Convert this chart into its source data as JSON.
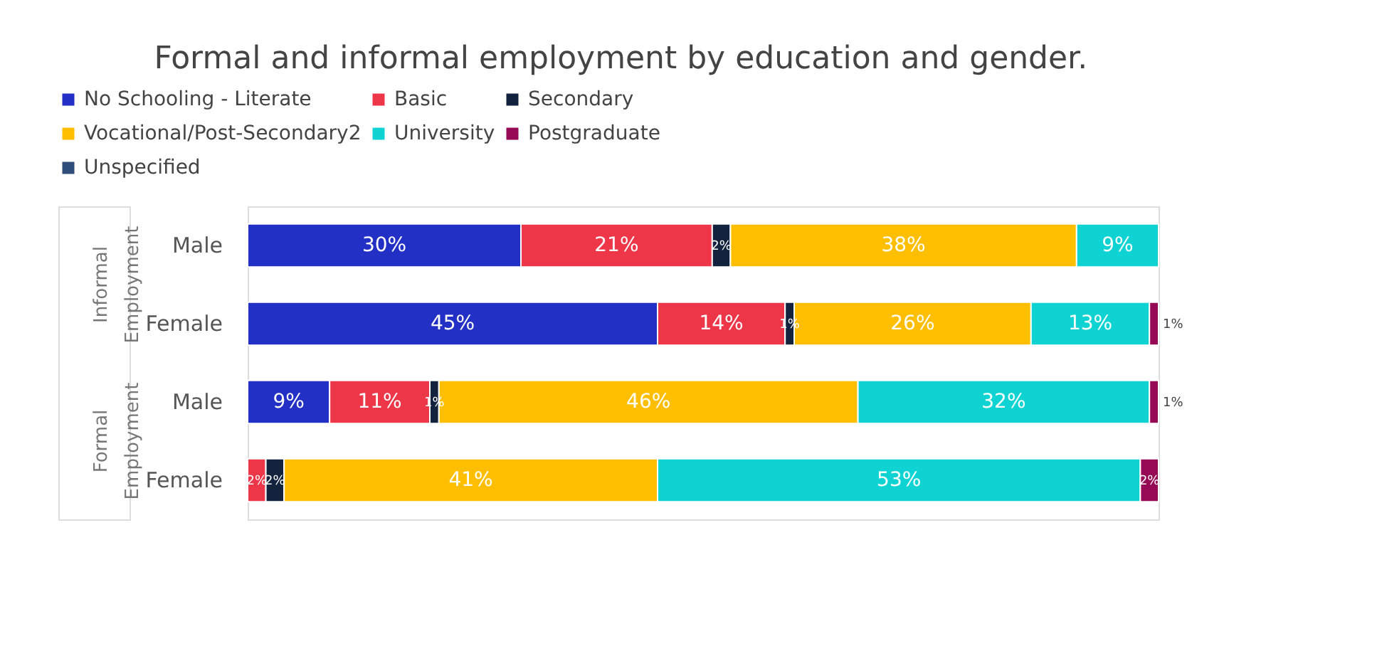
{
  "chart_data": {
    "type": "bar",
    "orientation": "horizontal",
    "stacked": true,
    "legend": "top",
    "grid": false,
    "tick_labels": "y",
    "title": "Formal and informal employment by education and gender.",
    "categories": [
      "Male",
      "Female",
      "Male",
      "Female"
    ],
    "annotations": [
      "Informal Employment",
      "Formal Employment"
    ],
    "series": [
      {
        "name": "No Schooling - Literate",
        "color": "#2330c6",
        "values": [
          30,
          45,
          9,
          null
        ],
        "value_labels": [
          "30%",
          "45%",
          "9%",
          null
        ]
      },
      {
        "name": "Basic",
        "color": "#ee3649",
        "values": [
          21,
          14,
          11,
          2
        ],
        "value_labels": [
          "21%",
          "14%",
          "11%",
          "2%"
        ]
      },
      {
        "name": "Secondary",
        "color": "#13223d",
        "values": [
          2,
          1,
          1,
          2
        ],
        "value_labels": [
          "2%",
          "1%",
          "1%",
          "2%"
        ]
      },
      {
        "name": "Vocational/Post-Secondary2",
        "color": "#ffbf00",
        "values": [
          38,
          26,
          46,
          41
        ],
        "value_labels": [
          "38%",
          "26%",
          "46%",
          "41%"
        ]
      },
      {
        "name": "University",
        "color": "#0fd3d3",
        "values": [
          9,
          13,
          32,
          53
        ],
        "value_labels": [
          "9%",
          "13%",
          "32%",
          "53%"
        ]
      },
      {
        "name": "Postgraduate",
        "color": "#960a55",
        "values": [
          null,
          1,
          1,
          2
        ],
        "value_labels": [
          null,
          "1%",
          "1%",
          "2%"
        ]
      },
      {
        "name": "Unspecified",
        "color": "#2f4d7a",
        "values": [
          null,
          null,
          null,
          null
        ]
      }
    ]
  }
}
